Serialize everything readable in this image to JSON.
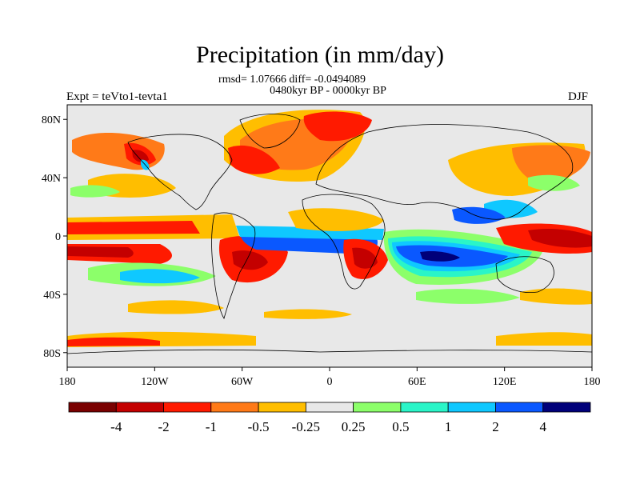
{
  "title": "Precipitation (in mm/day)",
  "stats_line": "rmsd= 1.07666 diff= -0.0494089",
  "period_line": "0480kyr BP - 0000kyr BP",
  "left_label": "Expt = teVto1-tevta1",
  "right_label": "DJF",
  "lat_ticks": [
    "80N",
    "40N",
    "0",
    "40S",
    "80S"
  ],
  "lon_ticks": [
    "180",
    "120W",
    "60W",
    "0",
    "60E",
    "120E",
    "180"
  ],
  "colorbar": {
    "colors": [
      "#7a0000",
      "#c40000",
      "#ff1a00",
      "#ff7a18",
      "#ffbe00",
      "#e8e8e8",
      "#8cff6a",
      "#2af5c8",
      "#0fc8ff",
      "#0a58ff",
      "#00007a"
    ],
    "labels": [
      "-4",
      "-2",
      "-1",
      "-0.5",
      "-0.25",
      "0.25",
      "0.5",
      "1",
      "2",
      "4"
    ]
  },
  "colors": {
    "background": "#e8e8e8",
    "coast": "#000000"
  }
}
